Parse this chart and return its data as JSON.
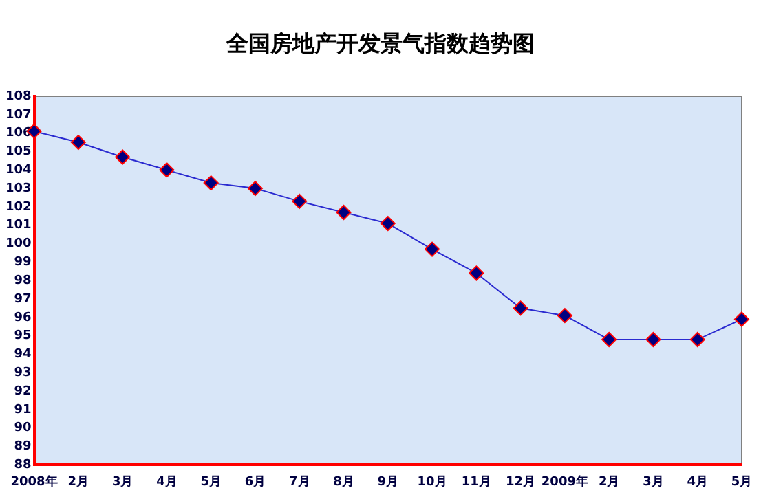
{
  "chart_data": {
    "type": "line",
    "title": "全国房地产开发景气指数趋势图",
    "categories": [
      "2008年",
      "2月",
      "3月",
      "4月",
      "5月",
      "6月",
      "7月",
      "8月",
      "9月",
      "10月",
      "11月",
      "12月",
      "2009年",
      "2月",
      "3月",
      "4月",
      "5月"
    ],
    "series": [
      {
        "color": "#2a2ad0",
        "values": [
          106.1,
          105.5,
          104.7,
          104.0,
          103.3,
          103.0,
          102.3,
          101.7,
          101.1,
          99.7,
          98.4,
          96.5,
          96.1,
          94.8,
          94.8,
          94.8,
          95.9
        ]
      }
    ],
    "ylim": [
      88,
      108
    ],
    "yticks": [
      88,
      89,
      90,
      91,
      92,
      93,
      94,
      95,
      96,
      97,
      98,
      99,
      100,
      101,
      102,
      103,
      104,
      105,
      106,
      107,
      108
    ],
    "grid": false,
    "legend": false,
    "marker": "diamond",
    "line_style": "solid"
  }
}
